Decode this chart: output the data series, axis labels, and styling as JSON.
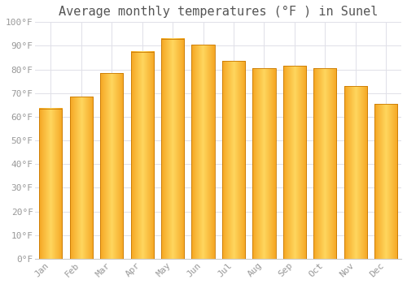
{
  "title": "Average monthly temperatures (°F ) in Sunel",
  "months": [
    "Jan",
    "Feb",
    "Mar",
    "Apr",
    "May",
    "Jun",
    "Jul",
    "Aug",
    "Sep",
    "Oct",
    "Nov",
    "Dec"
  ],
  "values": [
    63.5,
    68.5,
    78.5,
    87.5,
    93.0,
    90.5,
    83.5,
    80.5,
    81.5,
    80.5,
    73.0,
    65.5
  ],
  "bar_color_left": "#F5A623",
  "bar_color_center": "#FFD65E",
  "bar_color_right": "#F5A623",
  "bar_edge_color": "#C87800",
  "background_color": "#FFFFFF",
  "plot_bg_color": "#FFFFFF",
  "ylim": [
    0,
    100
  ],
  "yticks": [
    0,
    10,
    20,
    30,
    40,
    50,
    60,
    70,
    80,
    90,
    100
  ],
  "ytick_labels": [
    "0°F",
    "10°F",
    "20°F",
    "30°F",
    "40°F",
    "50°F",
    "60°F",
    "70°F",
    "80°F",
    "90°F",
    "100°F"
  ],
  "title_fontsize": 11,
  "tick_fontsize": 8,
  "grid_color": "#E0E0E8",
  "font_color": "#999999",
  "bar_width": 0.75
}
